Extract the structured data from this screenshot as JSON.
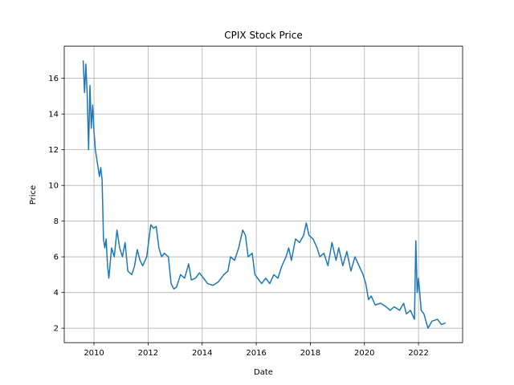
{
  "chart_data": {
    "type": "line",
    "title": "CPIX Stock Price",
    "x_label": "Date",
    "y_label": "Price",
    "x": [
      2009.6,
      2009.65,
      2009.7,
      2009.75,
      2009.8,
      2009.85,
      2009.9,
      2009.95,
      2010.0,
      2010.05,
      2010.1,
      2010.2,
      2010.25,
      2010.3,
      2010.35,
      2010.4,
      2010.45,
      2010.5,
      2010.55,
      2010.65,
      2010.75,
      2010.85,
      2010.95,
      2011.05,
      2011.15,
      2011.25,
      2011.4,
      2011.5,
      2011.6,
      2011.7,
      2011.8,
      2011.95,
      2012.1,
      2012.2,
      2012.3,
      2012.4,
      2012.5,
      2012.6,
      2012.75,
      2012.85,
      2012.95,
      2013.05,
      2013.2,
      2013.35,
      2013.5,
      2013.6,
      2013.75,
      2013.9,
      2014.05,
      2014.2,
      2014.4,
      2014.6,
      2014.8,
      2014.95,
      2015.05,
      2015.2,
      2015.35,
      2015.5,
      2015.6,
      2015.7,
      2015.85,
      2015.95,
      2016.05,
      2016.2,
      2016.35,
      2016.5,
      2016.65,
      2016.8,
      2016.95,
      2017.1,
      2017.2,
      2017.3,
      2017.45,
      2017.6,
      2017.75,
      2017.85,
      2017.95,
      2018.1,
      2018.25,
      2018.35,
      2018.5,
      2018.65,
      2018.8,
      2018.95,
      2019.05,
      2019.2,
      2019.35,
      2019.5,
      2019.65,
      2019.8,
      2019.95,
      2020.05,
      2020.15,
      2020.25,
      2020.4,
      2020.6,
      2020.8,
      2020.95,
      2021.1,
      2021.3,
      2021.45,
      2021.55,
      2021.7,
      2021.85,
      2021.9,
      2021.95,
      2022.0,
      2022.1,
      2022.2,
      2022.35,
      2022.5,
      2022.7,
      2022.85,
      2023.0
    ],
    "series": [
      {
        "name": "CPIX",
        "color": "#1f77b4",
        "values": [
          17.0,
          15.2,
          16.8,
          15.0,
          12.0,
          15.6,
          13.2,
          14.5,
          13.0,
          12.0,
          11.5,
          10.5,
          11.0,
          10.3,
          7.0,
          6.5,
          7.0,
          5.5,
          4.8,
          6.5,
          6.0,
          7.5,
          6.5,
          6.0,
          6.8,
          5.2,
          5.0,
          5.5,
          6.4,
          5.8,
          5.5,
          6.0,
          7.8,
          7.6,
          7.7,
          6.5,
          6.0,
          6.2,
          6.0,
          4.5,
          4.2,
          4.3,
          5.0,
          4.8,
          5.6,
          4.7,
          4.8,
          5.1,
          4.8,
          4.5,
          4.4,
          4.6,
          5.0,
          5.2,
          6.0,
          5.8,
          6.5,
          7.5,
          7.2,
          6.0,
          6.2,
          5.0,
          4.8,
          4.5,
          4.8,
          4.5,
          5.0,
          4.8,
          5.5,
          6.0,
          6.5,
          5.8,
          7.0,
          6.8,
          7.2,
          7.9,
          7.2,
          7.0,
          6.5,
          6.0,
          6.2,
          5.5,
          6.8,
          5.8,
          6.5,
          5.5,
          6.3,
          5.2,
          6.0,
          5.5,
          5.0,
          4.5,
          3.6,
          3.8,
          3.3,
          3.4,
          3.2,
          3.0,
          3.2,
          3.0,
          3.4,
          2.8,
          3.0,
          2.5,
          6.9,
          4.0,
          4.8,
          3.0,
          2.8,
          2.0,
          2.4,
          2.5,
          2.2,
          2.3
        ]
      }
    ],
    "xlim": [
      2008.9,
      2023.63
    ],
    "xticks": [
      2010,
      2012,
      2014,
      2016,
      2018,
      2020,
      2022
    ],
    "ylim": [
      1.19,
      17.8
    ],
    "yticks": [
      2,
      4,
      6,
      8,
      10,
      12,
      14,
      16
    ],
    "grid": true
  }
}
